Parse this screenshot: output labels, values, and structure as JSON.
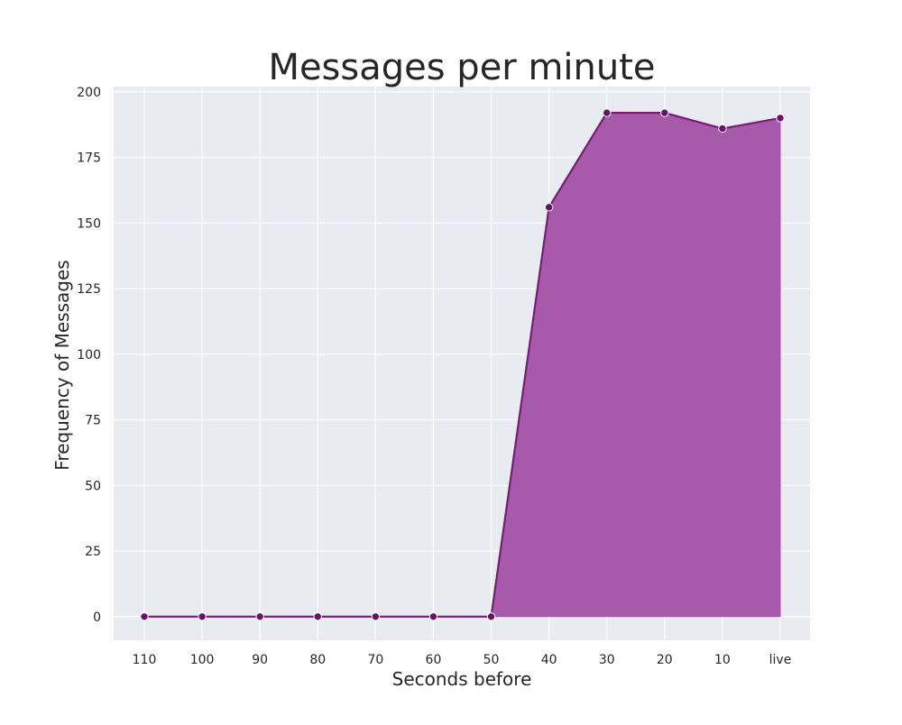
{
  "chart_data": {
    "type": "area",
    "title": "Messages per minute",
    "xlabel": "Seconds before",
    "ylabel": "Frequency of Messages",
    "categories": [
      "110",
      "100",
      "90",
      "80",
      "70",
      "60",
      "50",
      "40",
      "30",
      "20",
      "10",
      "live"
    ],
    "series": [
      {
        "values": [
          0,
          0,
          0,
          0,
          0,
          0,
          0,
          156,
          192,
          192,
          186,
          190
        ]
      }
    ],
    "ylim": [
      -9,
      202
    ],
    "yticks": [
      0,
      25,
      50,
      75,
      100,
      125,
      150,
      175,
      200
    ],
    "grid": true,
    "colors": {
      "background": "#eaeaf2",
      "grid": "#ffffff",
      "line": "#7a1a7a",
      "fill": "#a352a5",
      "marker": "#6b0f6b",
      "marker_edge": "#ffffff"
    }
  }
}
